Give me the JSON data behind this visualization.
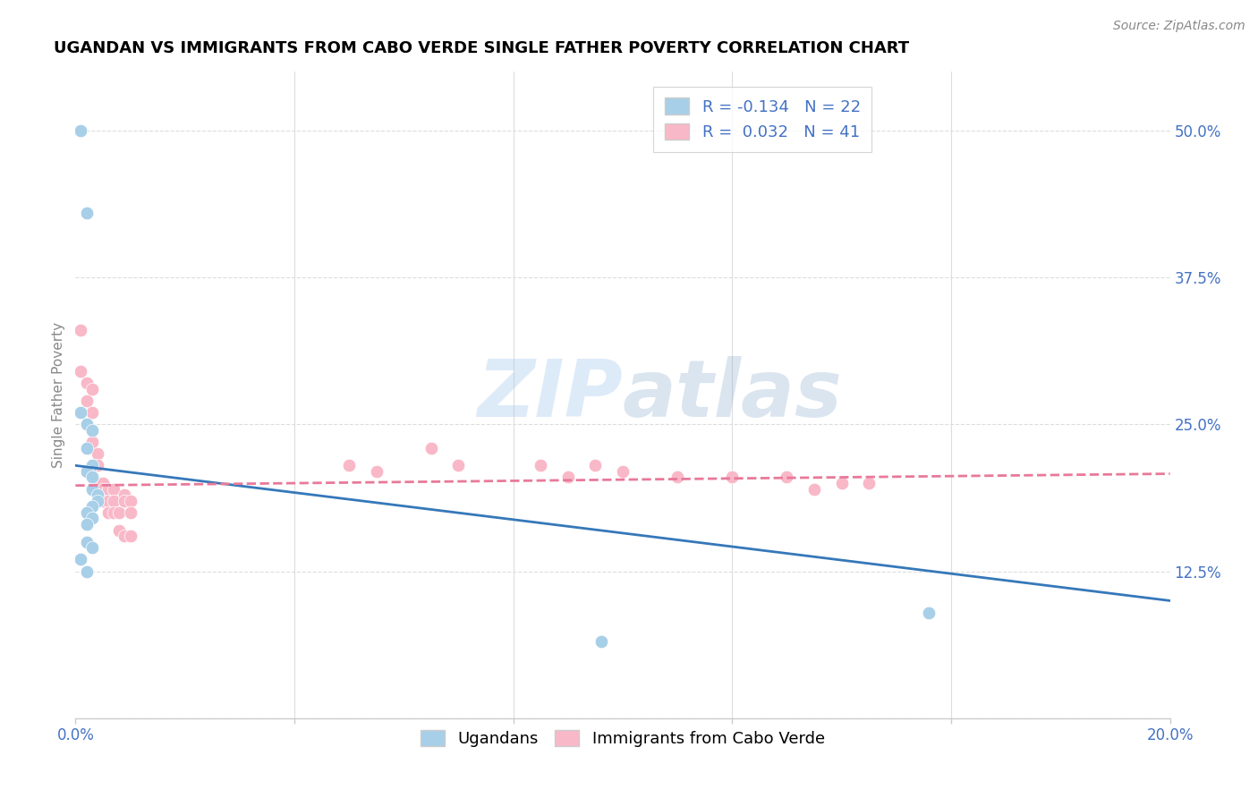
{
  "title": "UGANDAN VS IMMIGRANTS FROM CABO VERDE SINGLE FATHER POVERTY CORRELATION CHART",
  "source": "Source: ZipAtlas.com",
  "ylabel": "Single Father Poverty",
  "xlim": [
    0.0,
    0.2
  ],
  "ylim": [
    0.0,
    0.55
  ],
  "xticks": [
    0.0,
    0.04,
    0.08,
    0.12,
    0.16,
    0.2
  ],
  "xticklabels_show": [
    "0.0%",
    "20.0%"
  ],
  "yticks_right": [
    0.125,
    0.25,
    0.375,
    0.5
  ],
  "yticklabels_right": [
    "12.5%",
    "25.0%",
    "37.5%",
    "50.0%"
  ],
  "blue_color": "#a8cfe8",
  "pink_color": "#f9b8c8",
  "blue_line_color": "#3578b9",
  "pink_line_color": "#e8799a",
  "watermark_zip": "ZIP",
  "watermark_atlas": "atlas",
  "legend_R_blue": "-0.134",
  "legend_N_blue": "22",
  "legend_R_pink": "0.032",
  "legend_N_pink": "41",
  "ugandan_x": [
    0.001,
    0.002,
    0.001,
    0.002,
    0.003,
    0.002,
    0.003,
    0.002,
    0.003,
    0.003,
    0.004,
    0.004,
    0.003,
    0.002,
    0.003,
    0.002,
    0.002,
    0.003,
    0.001,
    0.002,
    0.096,
    0.156
  ],
  "ugandan_y": [
    0.5,
    0.43,
    0.26,
    0.25,
    0.245,
    0.23,
    0.215,
    0.21,
    0.205,
    0.195,
    0.19,
    0.185,
    0.18,
    0.175,
    0.17,
    0.165,
    0.15,
    0.145,
    0.135,
    0.125,
    0.065,
    0.09
  ],
  "caboverde_x": [
    0.001,
    0.001,
    0.002,
    0.002,
    0.003,
    0.003,
    0.003,
    0.004,
    0.004,
    0.004,
    0.005,
    0.005,
    0.005,
    0.006,
    0.006,
    0.006,
    0.007,
    0.007,
    0.007,
    0.008,
    0.008,
    0.009,
    0.009,
    0.009,
    0.01,
    0.01,
    0.01,
    0.05,
    0.055,
    0.065,
    0.07,
    0.085,
    0.09,
    0.095,
    0.1,
    0.11,
    0.12,
    0.13,
    0.135,
    0.14,
    0.145
  ],
  "caboverde_y": [
    0.33,
    0.295,
    0.285,
    0.27,
    0.28,
    0.26,
    0.235,
    0.225,
    0.215,
    0.2,
    0.2,
    0.195,
    0.185,
    0.195,
    0.185,
    0.175,
    0.195,
    0.185,
    0.175,
    0.175,
    0.16,
    0.19,
    0.185,
    0.155,
    0.185,
    0.175,
    0.155,
    0.215,
    0.21,
    0.23,
    0.215,
    0.215,
    0.205,
    0.215,
    0.21,
    0.205,
    0.205,
    0.205,
    0.195,
    0.2,
    0.2
  ],
  "blue_trendline_x": [
    0.0,
    0.2
  ],
  "blue_trendline_y": [
    0.215,
    0.1
  ],
  "pink_trendline_x": [
    0.0,
    0.2
  ],
  "pink_trendline_y": [
    0.198,
    0.208
  ]
}
